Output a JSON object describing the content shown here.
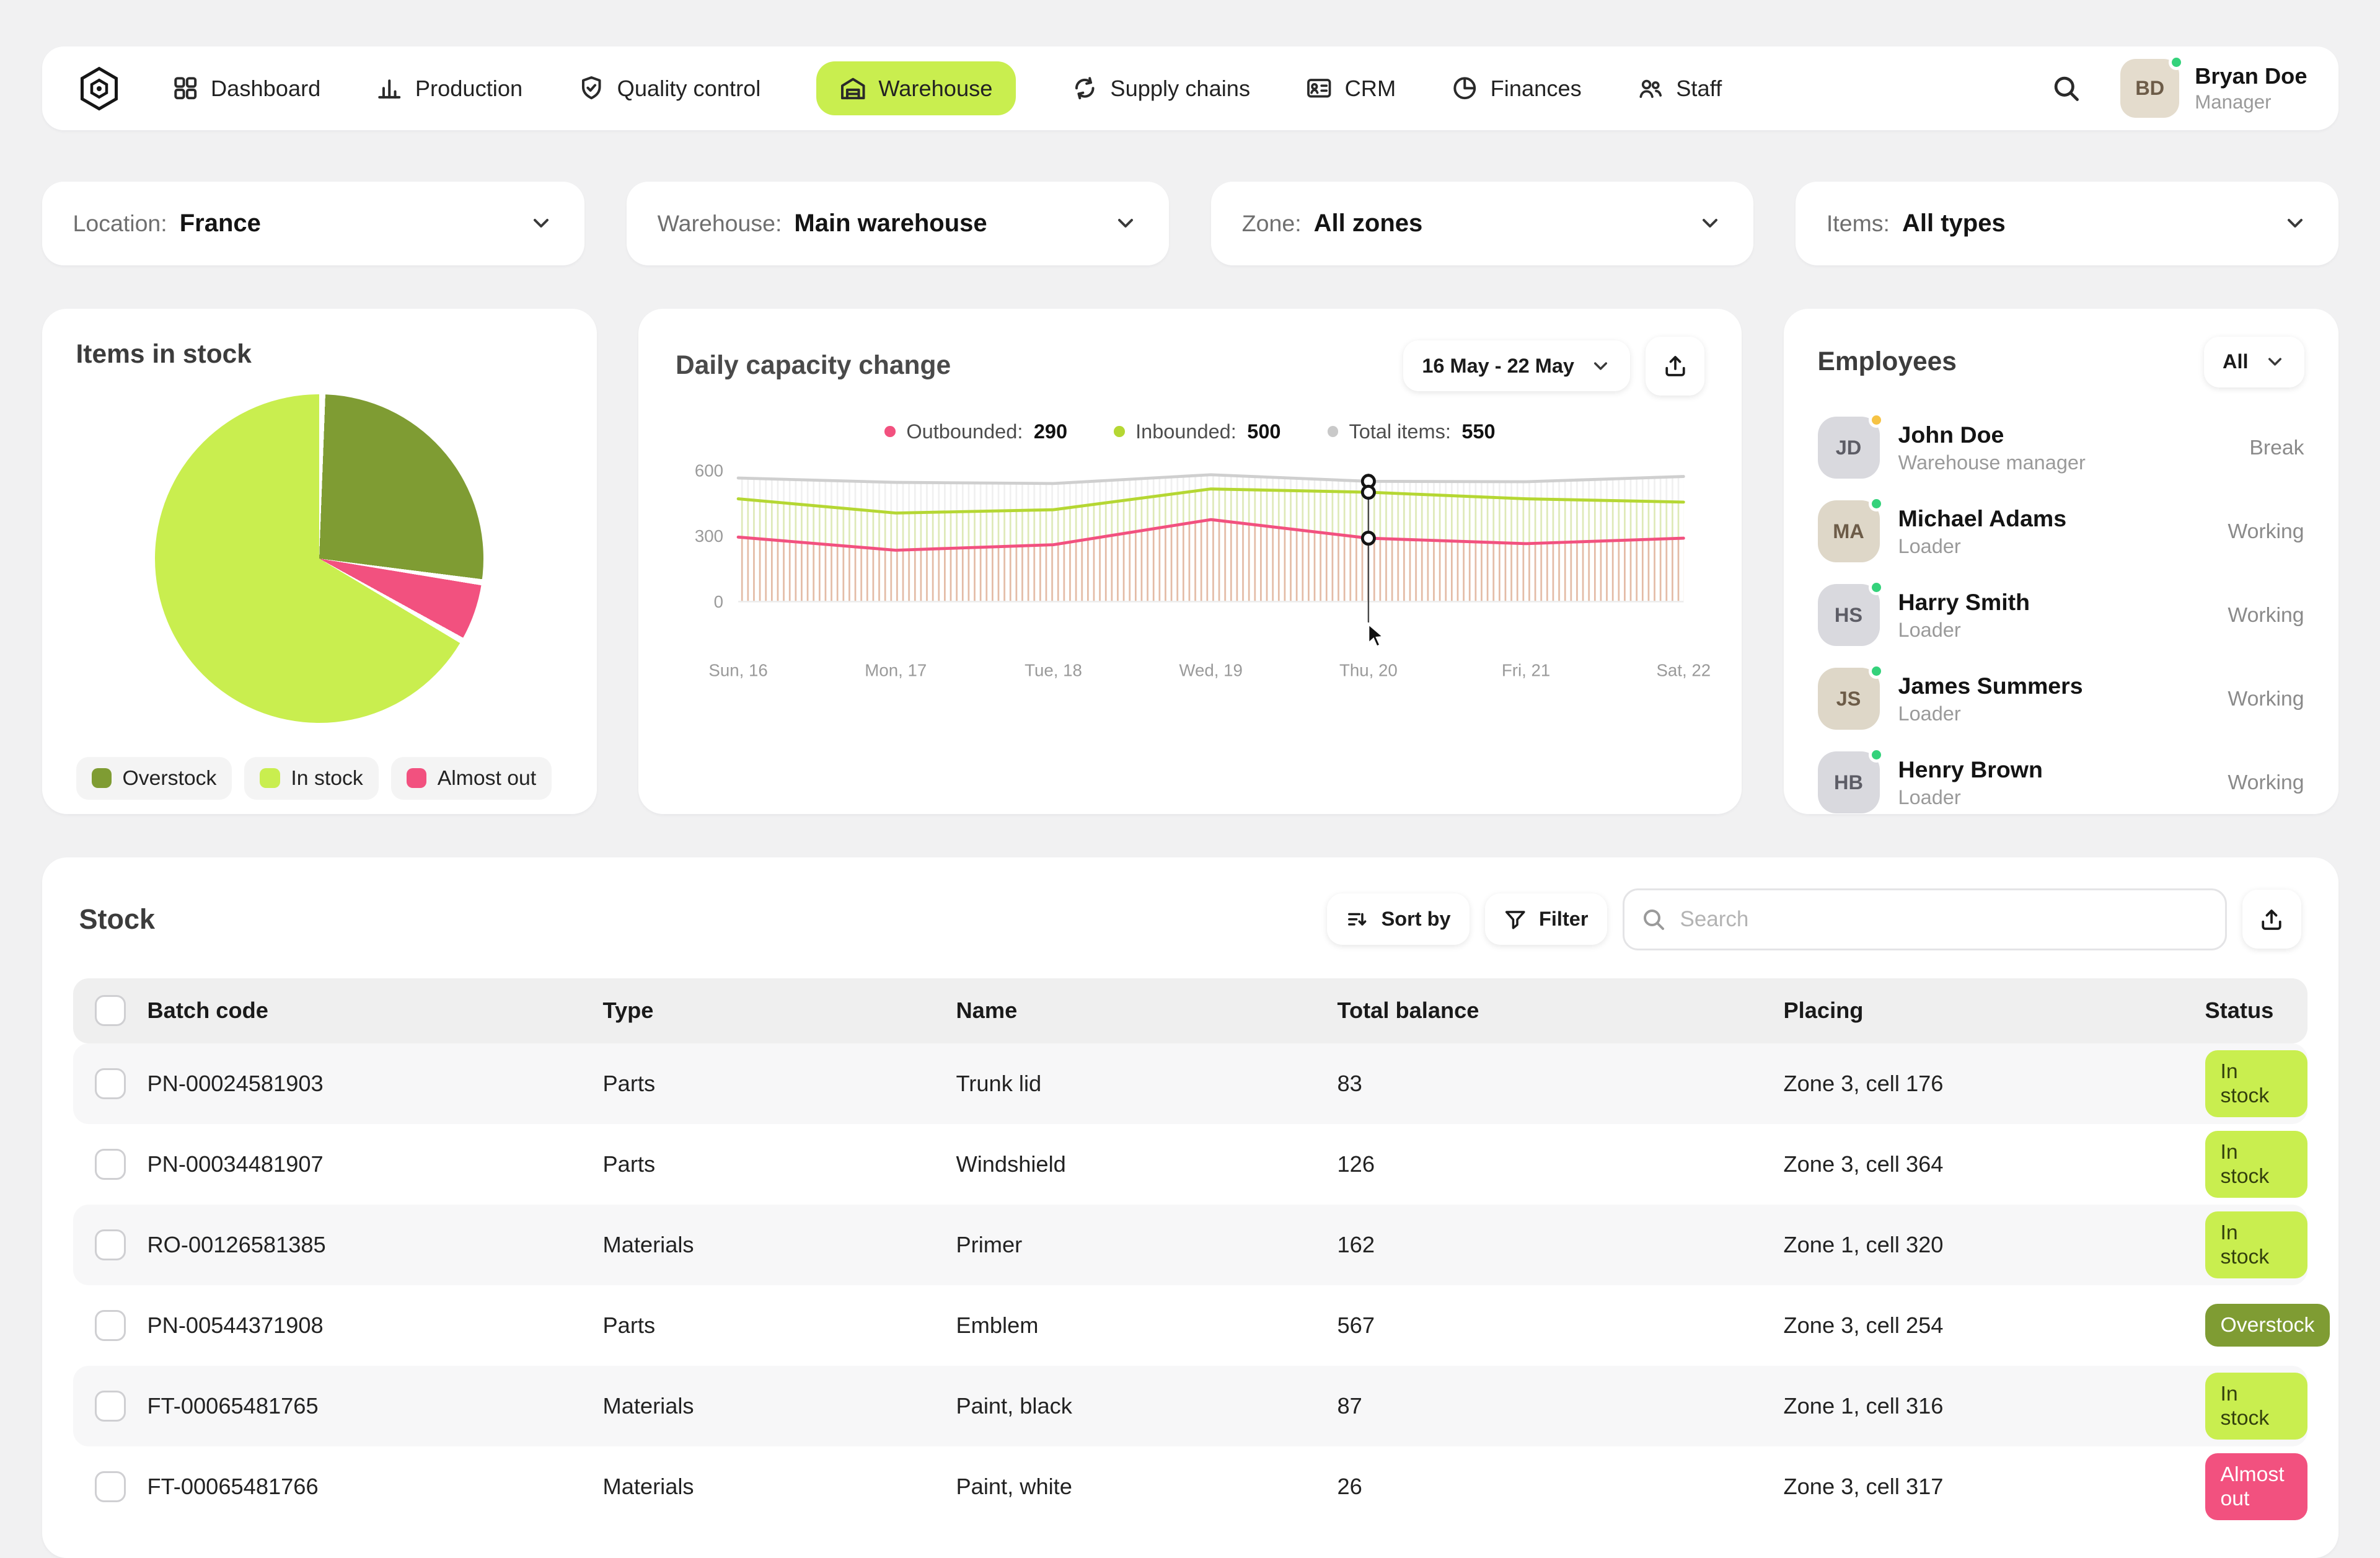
{
  "theme": {
    "lime": "#c9ee4f",
    "olive": "#7f9c33",
    "pink": "#f2517f",
    "gray_line": "#cfcfcf",
    "status_working_dot": "#34d27b",
    "status_break_dot": "#f6c344",
    "background": "#f1f1f2"
  },
  "navbar": {
    "items": [
      {
        "label": "Dashboard"
      },
      {
        "label": "Production"
      },
      {
        "label": "Quality control"
      },
      {
        "label": "Warehouse",
        "active": true
      },
      {
        "label": "Supply chains"
      },
      {
        "label": "CRM"
      },
      {
        "label": "Finances"
      },
      {
        "label": "Staff"
      }
    ],
    "user": {
      "name": "Bryan Doe",
      "role": "Manager"
    }
  },
  "filters": [
    {
      "label": "Location:",
      "value": "France"
    },
    {
      "label": "Warehouse:",
      "value": "Main warehouse"
    },
    {
      "label": "Zone:",
      "value": "All zones"
    },
    {
      "label": "Items:",
      "value": "All types"
    }
  ],
  "stock_pie": {
    "title": "Items in stock",
    "legend": [
      {
        "label": "Overstock",
        "color": "#7f9c33"
      },
      {
        "label": "In stock",
        "color": "#c9ee4f"
      },
      {
        "label": "Almost out",
        "color": "#f2517f"
      }
    ]
  },
  "capacity": {
    "title": "Daily capacity change",
    "range": "16 May - 22 May",
    "legend": [
      {
        "label": "Outbounded:",
        "value": "290",
        "color": "#f2517f"
      },
      {
        "label": "Inbounded:",
        "value": "500",
        "color": "#b5d733"
      },
      {
        "label": "Total items:",
        "value": "550",
        "color": "#c9c9c9"
      }
    ]
  },
  "employees": {
    "title": "Employees",
    "filter": "All",
    "list": [
      {
        "name": "John Doe",
        "role": "Warehouse manager",
        "status": "Break"
      },
      {
        "name": "Michael Adams",
        "role": "Loader",
        "status": "Working"
      },
      {
        "name": "Harry Smith",
        "role": "Loader",
        "status": "Working"
      },
      {
        "name": "James Summers",
        "role": "Loader",
        "status": "Working"
      },
      {
        "name": "Henry Brown",
        "role": "Loader",
        "status": "Working"
      }
    ]
  },
  "stock_table": {
    "title": "Stock",
    "sort_label": "Sort by",
    "filter_label": "Filter",
    "search_placeholder": "Search",
    "columns": [
      "Batch code",
      "Type",
      "Name",
      "Total balance",
      "Placing",
      "Status"
    ],
    "rows": [
      {
        "batch": "PN-00024581903",
        "type": "Parts",
        "name": "Trunk lid",
        "balance": "83",
        "placing": "Zone 3, cell 176",
        "status": "In stock"
      },
      {
        "batch": "PN-00034481907",
        "type": "Parts",
        "name": "Windshield",
        "balance": "126",
        "placing": "Zone 3, cell 364",
        "status": "In stock"
      },
      {
        "batch": "RO-00126581385",
        "type": "Materials",
        "name": "Primer",
        "balance": "162",
        "placing": "Zone 1, cell 320",
        "status": "In stock"
      },
      {
        "batch": "PN-00544371908",
        "type": "Parts",
        "name": "Emblem",
        "balance": "567",
        "placing": "Zone 3, cell 254",
        "status": "Overstock"
      },
      {
        "batch": "FT-00065481765",
        "type": "Materials",
        "name": "Paint, black",
        "balance": "87",
        "placing": "Zone 1, cell 316",
        "status": "In stock"
      },
      {
        "batch": "FT-00065481766",
        "type": "Materials",
        "name": "Paint, white",
        "balance": "26",
        "placing": "Zone 3, cell 317",
        "status": "Almost out"
      }
    ]
  },
  "chart_data": [
    {
      "type": "pie",
      "title": "Items in stock",
      "labels": [
        "Overstock",
        "Almost out",
        "In stock"
      ],
      "values": [
        27,
        6,
        67
      ],
      "colors": [
        "#7f9c33",
        "#f2517f",
        "#c9ee4f"
      ],
      "legend_position": "bottom"
    },
    {
      "type": "line",
      "title": "Daily capacity change",
      "x": [
        "Sun, 16",
        "Mon, 17",
        "Tue, 18",
        "Wed, 19",
        "Thu, 20",
        "Fri, 21",
        "Sat, 22"
      ],
      "series": [
        {
          "name": "Total items",
          "color": "#cfcfcf",
          "values": [
            565,
            545,
            540,
            580,
            550,
            548,
            572
          ]
        },
        {
          "name": "Inbounded",
          "color": "#b5d733",
          "values": [
            470,
            405,
            420,
            515,
            500,
            470,
            455
          ]
        },
        {
          "name": "Outbounded",
          "color": "#f2517f",
          "values": [
            295,
            235,
            260,
            375,
            290,
            265,
            290
          ]
        }
      ],
      "ylim": [
        0,
        600
      ],
      "yticks": [
        0,
        300,
        600
      ],
      "highlight_x": "Thu, 20",
      "highlight_index": 4,
      "legend_position": "top"
    }
  ]
}
